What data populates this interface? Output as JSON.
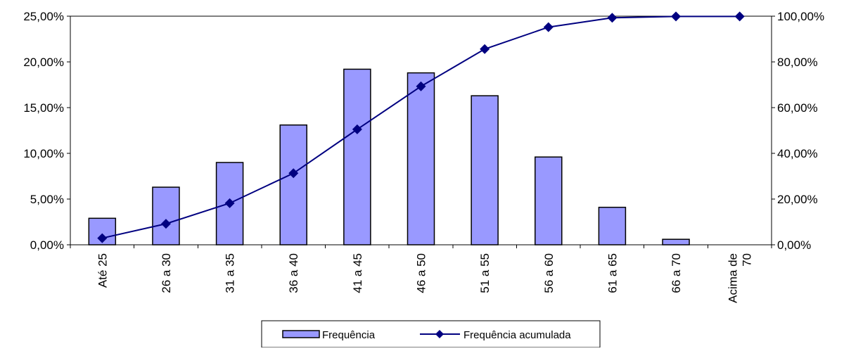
{
  "chart_data": {
    "type": "bar",
    "categories": [
      "Até 25",
      "26 a 30",
      "31 a 35",
      "36 a 40",
      "41 a 45",
      "46 a 50",
      "51 a 55",
      "56 a 60",
      "61 a 65",
      "66 a 70",
      "Acima de 70"
    ],
    "category_label_lines": [
      [
        "Até 25"
      ],
      [
        "26 a 30"
      ],
      [
        "31 a 35"
      ],
      [
        "36 a 40"
      ],
      [
        "41 a 45"
      ],
      [
        "46 a 50"
      ],
      [
        "51 a 55"
      ],
      [
        "56 a 60"
      ],
      [
        "61 a 65"
      ],
      [
        "66 a 70"
      ],
      [
        "Acima de",
        "70"
      ]
    ],
    "series": [
      {
        "name": "Frequência",
        "type": "bar",
        "axis": "left",
        "color": "#9999FF",
        "values": [
          2.9,
          6.3,
          9.0,
          13.1,
          19.2,
          18.8,
          16.3,
          9.6,
          4.1,
          0.6,
          0.0
        ]
      },
      {
        "name": "Frequência acumulada",
        "type": "line",
        "axis": "right",
        "color": "#000080",
        "marker": "diamond",
        "values": [
          2.9,
          9.2,
          18.2,
          31.3,
          50.5,
          69.3,
          85.6,
          95.2,
          99.3,
          99.9,
          99.9
        ]
      }
    ],
    "y_left": {
      "min": 0,
      "max": 25,
      "step": 5,
      "tick_labels": [
        "0,00%",
        "5,00%",
        "10,00%",
        "15,00%",
        "20,00%",
        "25,00%"
      ]
    },
    "y_right": {
      "min": 0,
      "max": 100,
      "step": 20,
      "tick_labels": [
        "0,00%",
        "20,00%",
        "40,00%",
        "60,00%",
        "80,00%",
        "100,00%"
      ]
    },
    "grid": true,
    "legend_position": "bottom-center"
  }
}
